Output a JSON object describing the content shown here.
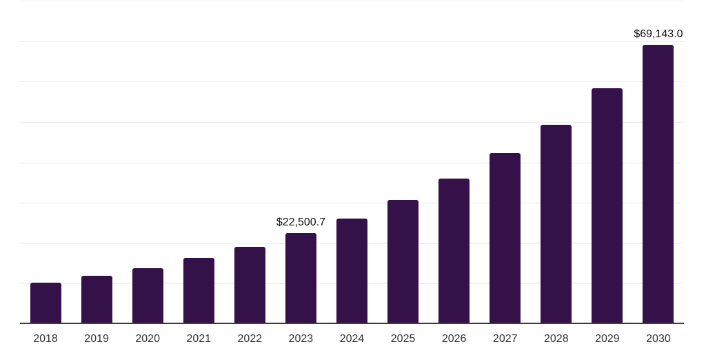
{
  "chart_data": {
    "type": "bar",
    "title": "",
    "xlabel": "",
    "ylabel": "",
    "categories": [
      "2018",
      "2019",
      "2020",
      "2021",
      "2022",
      "2023",
      "2024",
      "2025",
      "2026",
      "2027",
      "2028",
      "2029",
      "2030"
    ],
    "values": [
      10300,
      12000,
      13800,
      16450,
      19150,
      22500.7,
      26100,
      30750,
      36000,
      42300,
      49350,
      58300,
      69143.0
    ],
    "labeled_points": [
      {
        "category": "2023",
        "label": "$22,500.7"
      },
      {
        "category": "2030",
        "label": "$69,143.0"
      }
    ],
    "ylim": [
      0,
      80000
    ],
    "gridline_step": 10000,
    "grid": "on",
    "legend": "none",
    "y_tick_labels_visible": false,
    "colors": {
      "bar": "#341149",
      "gridline": "#ececec",
      "axis": "#3c3c3c",
      "tick_label": "#333333",
      "data_label": "#111111",
      "background": "#ffffff"
    }
  }
}
